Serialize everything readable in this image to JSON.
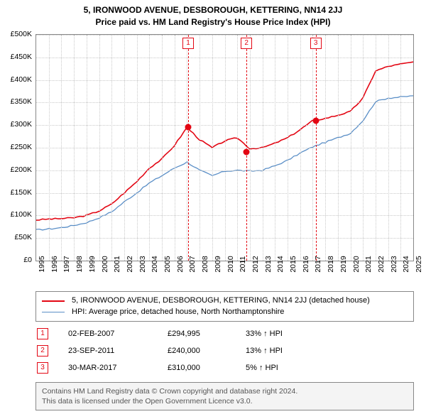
{
  "title": {
    "line1": "5, IRONWOOD AVENUE, DESBOROUGH, KETTERING, NN14 2JJ",
    "line2": "Price paid vs. HM Land Registry's House Price Index (HPI)"
  },
  "chart": {
    "ylim": [
      0,
      500000
    ],
    "ytick_step": 50000,
    "ytick_labels": [
      "£0",
      "£50K",
      "£100K",
      "£150K",
      "£200K",
      "£250K",
      "£300K",
      "£350K",
      "£400K",
      "£450K",
      "£500K"
    ],
    "x_years": [
      1995,
      1996,
      1997,
      1998,
      1999,
      2000,
      2001,
      2002,
      2003,
      2004,
      2005,
      2006,
      2007,
      2008,
      2009,
      2010,
      2011,
      2012,
      2013,
      2014,
      2015,
      2016,
      2017,
      2018,
      2019,
      2020,
      2021,
      2022,
      2023,
      2024,
      2025
    ],
    "grid_color": "#c9c9c9",
    "background_color": "#ffffff",
    "series": {
      "property": {
        "color": "#e30613",
        "width": 1.6,
        "values": [
          90,
          92,
          93,
          95,
          100,
          110,
          125,
          150,
          175,
          205,
          225,
          255,
          295,
          268,
          250,
          265,
          272,
          248,
          250,
          260,
          272,
          290,
          310,
          315,
          322,
          330,
          360,
          420,
          430,
          435,
          440
        ]
      },
      "hpi": {
        "color": "#5b8fc7",
        "width": 1.3,
        "values": [
          68,
          70,
          73,
          78,
          84,
          95,
          108,
          130,
          150,
          172,
          188,
          205,
          218,
          200,
          188,
          198,
          200,
          198,
          200,
          210,
          222,
          238,
          252,
          262,
          272,
          282,
          310,
          352,
          360,
          362,
          365
        ]
      }
    },
    "sales_markers": [
      {
        "n": "1",
        "year_frac": 2007.09,
        "value": 294995,
        "color": "#e30613"
      },
      {
        "n": "2",
        "year_frac": 2011.73,
        "value": 240000,
        "color": "#e30613"
      },
      {
        "n": "3",
        "year_frac": 2017.24,
        "value": 310000,
        "color": "#e30613"
      }
    ]
  },
  "legend": [
    {
      "color": "#e30613",
      "width": 2,
      "label": "5, IRONWOOD AVENUE, DESBOROUGH, KETTERING, NN14 2JJ (detached house)"
    },
    {
      "color": "#5b8fc7",
      "width": 1.3,
      "label": "HPI: Average price, detached house, North Northamptonshire"
    }
  ],
  "sales": [
    {
      "n": "1",
      "color": "#e30613",
      "date": "02-FEB-2007",
      "price": "£294,995",
      "diff": "33% ↑ HPI"
    },
    {
      "n": "2",
      "color": "#e30613",
      "date": "23-SEP-2011",
      "price": "£240,000",
      "diff": "13% ↑ HPI"
    },
    {
      "n": "3",
      "color": "#e30613",
      "date": "30-MAR-2017",
      "price": "£310,000",
      "diff": "5% ↑ HPI"
    }
  ],
  "footer": {
    "line1": "Contains HM Land Registry data © Crown copyright and database right 2024.",
    "line2": "This data is licensed under the Open Government Licence v3.0."
  }
}
